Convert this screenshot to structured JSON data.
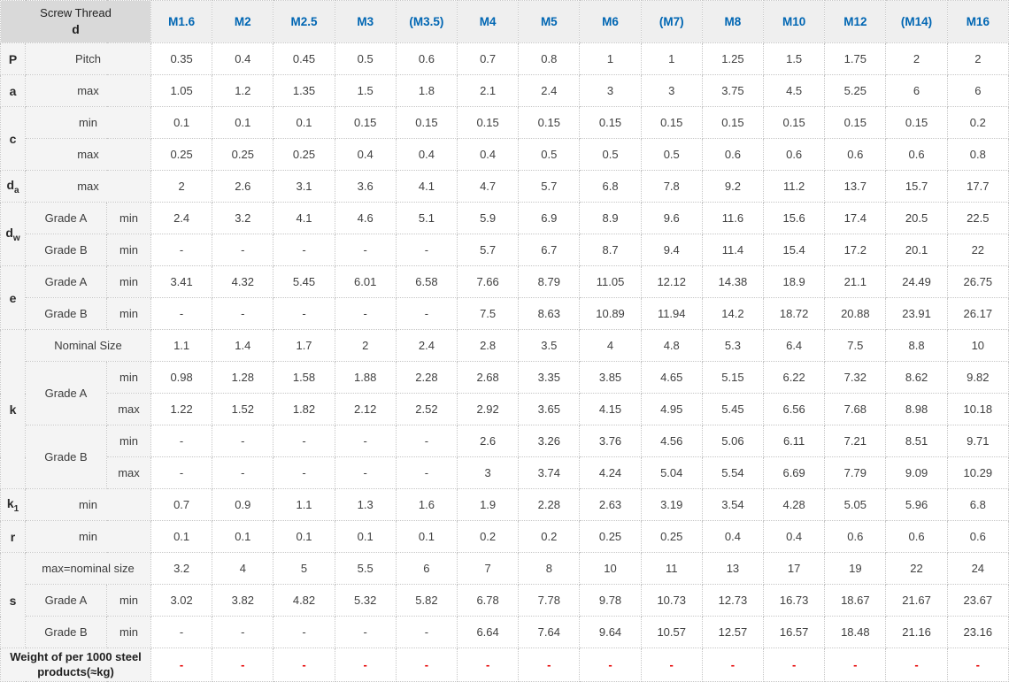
{
  "table": {
    "corner": {
      "line1": "Screw Thread",
      "line2": "d"
    },
    "columns": [
      "M1.6",
      "M2",
      "M2.5",
      "M3",
      "(M3.5)",
      "M4",
      "M5",
      "M6",
      "(M7)",
      "M8",
      "M10",
      "M12",
      "(M14)",
      "M16"
    ],
    "colors": {
      "header_text_blue": "#0066b3",
      "red_dash": "#e60000",
      "corner_bg": "#d9d9d9",
      "header_row_bg": "#efefef",
      "label_bg": "#f4f4f4",
      "grid_border": "#c6c6c6"
    },
    "rows": [
      {
        "labels": [
          {
            "text": "P",
            "cls": "sym"
          },
          {
            "text": "Pitch",
            "colspan": 2
          }
        ],
        "values": [
          "0.35",
          "0.4",
          "0.45",
          "0.5",
          "0.6",
          "0.7",
          "0.8",
          "1",
          "1",
          "1.25",
          "1.5",
          "1.75",
          "2",
          "2"
        ]
      },
      {
        "labels": [
          {
            "text": "a",
            "cls": "sym"
          },
          {
            "text": "max",
            "colspan": 2
          }
        ],
        "values": [
          "1.05",
          "1.2",
          "1.35",
          "1.5",
          "1.8",
          "2.1",
          "2.4",
          "3",
          "3",
          "3.75",
          "4.5",
          "5.25",
          "6",
          "6"
        ]
      },
      {
        "labels": [
          {
            "text": "c",
            "cls": "sym",
            "rowspan": 2
          },
          {
            "text": "min",
            "colspan": 2
          }
        ],
        "values": [
          "0.1",
          "0.1",
          "0.1",
          "0.15",
          "0.15",
          "0.15",
          "0.15",
          "0.15",
          "0.15",
          "0.15",
          "0.15",
          "0.15",
          "0.15",
          "0.2"
        ]
      },
      {
        "labels": [
          {
            "text": "max",
            "colspan": 2
          }
        ],
        "values": [
          "0.25",
          "0.25",
          "0.25",
          "0.4",
          "0.4",
          "0.4",
          "0.5",
          "0.5",
          "0.5",
          "0.6",
          "0.6",
          "0.6",
          "0.6",
          "0.8"
        ]
      },
      {
        "labels": [
          {
            "text": "d",
            "sub": "a",
            "cls": "sym"
          },
          {
            "text": "max",
            "colspan": 2
          }
        ],
        "values": [
          "2",
          "2.6",
          "3.1",
          "3.6",
          "4.1",
          "4.7",
          "5.7",
          "6.8",
          "7.8",
          "9.2",
          "11.2",
          "13.7",
          "15.7",
          "17.7"
        ]
      },
      {
        "labels": [
          {
            "text": "d",
            "sub": "w",
            "cls": "sym",
            "rowspan": 2
          },
          {
            "text": "Grade A"
          },
          {
            "text": "min"
          }
        ],
        "values": [
          "2.4",
          "3.2",
          "4.1",
          "4.6",
          "5.1",
          "5.9",
          "6.9",
          "8.9",
          "9.6",
          "11.6",
          "15.6",
          "17.4",
          "20.5",
          "22.5"
        ]
      },
      {
        "labels": [
          {
            "text": "Grade B"
          },
          {
            "text": "min"
          }
        ],
        "values": [
          "-",
          "-",
          "-",
          "-",
          "-",
          "5.7",
          "6.7",
          "8.7",
          "9.4",
          "11.4",
          "15.4",
          "17.2",
          "20.1",
          "22"
        ]
      },
      {
        "labels": [
          {
            "text": "e",
            "cls": "sym",
            "rowspan": 2
          },
          {
            "text": "Grade A"
          },
          {
            "text": "min"
          }
        ],
        "values": [
          "3.41",
          "4.32",
          "5.45",
          "6.01",
          "6.58",
          "7.66",
          "8.79",
          "11.05",
          "12.12",
          "14.38",
          "18.9",
          "21.1",
          "24.49",
          "26.75"
        ]
      },
      {
        "labels": [
          {
            "text": "Grade B"
          },
          {
            "text": "min"
          }
        ],
        "values": [
          "-",
          "-",
          "-",
          "-",
          "-",
          "7.5",
          "8.63",
          "10.89",
          "11.94",
          "14.2",
          "18.72",
          "20.88",
          "23.91",
          "26.17"
        ]
      },
      {
        "labels": [
          {
            "text": "k",
            "cls": "sym",
            "rowspan": 5
          },
          {
            "text": "Nominal Size",
            "colspan": 2
          }
        ],
        "values": [
          "1.1",
          "1.4",
          "1.7",
          "2",
          "2.4",
          "2.8",
          "3.5",
          "4",
          "4.8",
          "5.3",
          "6.4",
          "7.5",
          "8.8",
          "10"
        ]
      },
      {
        "labels": [
          {
            "text": "Grade A",
            "rowspan": 2
          },
          {
            "text": "min"
          }
        ],
        "values": [
          "0.98",
          "1.28",
          "1.58",
          "1.88",
          "2.28",
          "2.68",
          "3.35",
          "3.85",
          "4.65",
          "5.15",
          "6.22",
          "7.32",
          "8.62",
          "9.82"
        ]
      },
      {
        "labels": [
          {
            "text": "max"
          }
        ],
        "values": [
          "1.22",
          "1.52",
          "1.82",
          "2.12",
          "2.52",
          "2.92",
          "3.65",
          "4.15",
          "4.95",
          "5.45",
          "6.56",
          "7.68",
          "8.98",
          "10.18"
        ]
      },
      {
        "labels": [
          {
            "text": "Grade B",
            "rowspan": 2
          },
          {
            "text": "min"
          }
        ],
        "values": [
          "-",
          "-",
          "-",
          "-",
          "-",
          "2.6",
          "3.26",
          "3.76",
          "4.56",
          "5.06",
          "6.11",
          "7.21",
          "8.51",
          "9.71"
        ]
      },
      {
        "labels": [
          {
            "text": "max"
          }
        ],
        "values": [
          "-",
          "-",
          "-",
          "-",
          "-",
          "3",
          "3.74",
          "4.24",
          "5.04",
          "5.54",
          "6.69",
          "7.79",
          "9.09",
          "10.29"
        ]
      },
      {
        "labels": [
          {
            "text": "k",
            "sub": "1",
            "cls": "sym"
          },
          {
            "text": "min",
            "colspan": 2
          }
        ],
        "values": [
          "0.7",
          "0.9",
          "1.1",
          "1.3",
          "1.6",
          "1.9",
          "2.28",
          "2.63",
          "3.19",
          "3.54",
          "4.28",
          "5.05",
          "5.96",
          "6.8"
        ]
      },
      {
        "labels": [
          {
            "text": "r",
            "cls": "sym"
          },
          {
            "text": "min",
            "colspan": 2
          }
        ],
        "values": [
          "0.1",
          "0.1",
          "0.1",
          "0.1",
          "0.1",
          "0.2",
          "0.2",
          "0.25",
          "0.25",
          "0.4",
          "0.4",
          "0.6",
          "0.6",
          "0.6"
        ]
      },
      {
        "labels": [
          {
            "text": "s",
            "cls": "sym",
            "rowspan": 3
          },
          {
            "text": "max=nominal size",
            "colspan": 2
          }
        ],
        "values": [
          "3.2",
          "4",
          "5",
          "5.5",
          "6",
          "7",
          "8",
          "10",
          "11",
          "13",
          "17",
          "19",
          "22",
          "24"
        ]
      },
      {
        "labels": [
          {
            "text": "Grade A"
          },
          {
            "text": "min"
          }
        ],
        "values": [
          "3.02",
          "3.82",
          "4.82",
          "5.32",
          "5.82",
          "6.78",
          "7.78",
          "9.78",
          "10.73",
          "12.73",
          "16.73",
          "18.67",
          "21.67",
          "23.67"
        ]
      },
      {
        "labels": [
          {
            "text": "Grade B"
          },
          {
            "text": "min"
          }
        ],
        "values": [
          "-",
          "-",
          "-",
          "-",
          "-",
          "6.64",
          "7.64",
          "9.64",
          "10.57",
          "12.57",
          "16.57",
          "18.48",
          "21.16",
          "23.16"
        ]
      },
      {
        "labels": [
          {
            "text": "Weight of per 1000 steel products(≈kg)",
            "colspan": 3,
            "cls": "weight"
          }
        ],
        "values": [
          "-",
          "-",
          "-",
          "-",
          "-",
          "-",
          "-",
          "-",
          "-",
          "-",
          "-",
          "-",
          "-",
          "-"
        ],
        "red": true
      }
    ]
  }
}
